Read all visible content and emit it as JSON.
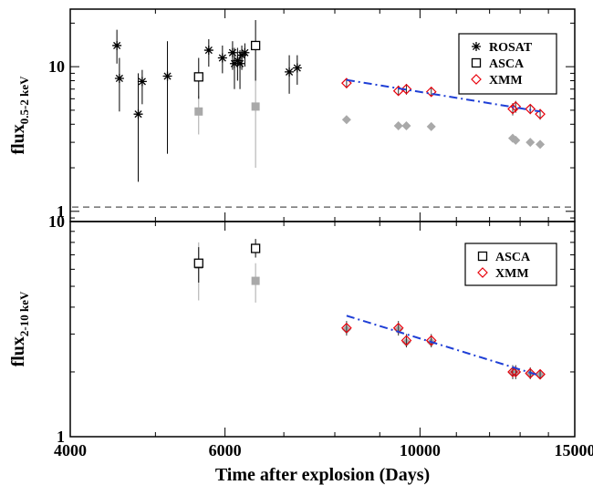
{
  "chart_data": [
    {
      "type": "scatter",
      "xscale": "log",
      "yscale": "log",
      "xlim": [
        4000,
        15000
      ],
      "ylim": [
        0.85,
        25
      ],
      "ylabel": {
        "base": "flux",
        "sub": "0.5-2 keV"
      },
      "yticks": [
        {
          "value": 1,
          "label": "1"
        },
        {
          "value": 10,
          "label": "10"
        }
      ],
      "reference_line": {
        "y": 1.07,
        "style": "dashed",
        "color": "#555555"
      },
      "legend": {
        "position": "top-right",
        "entries": [
          {
            "label": "ROSAT",
            "marker": "asterisk",
            "color": "#000000"
          },
          {
            "label": "ASCA",
            "marker": "square",
            "color": "#000000"
          },
          {
            "label": "XMM",
            "marker": "diamond",
            "color": "#e8000b"
          }
        ]
      },
      "series": [
        {
          "name": "ROSAT",
          "marker": "asterisk",
          "color": "#000000",
          "points": [
            {
              "x": 4520,
              "y": 14.0,
              "lo": 10.5,
              "hi": 18.0
            },
            {
              "x": 4550,
              "y": 8.3,
              "lo": 4.9,
              "hi": 11.5
            },
            {
              "x": 4780,
              "y": 4.7,
              "lo": 1.6,
              "hi": 9.0
            },
            {
              "x": 4830,
              "y": 7.9,
              "lo": 5.5,
              "hi": 9.5
            },
            {
              "x": 5160,
              "y": 8.6,
              "lo": 2.5,
              "hi": 15.0
            },
            {
              "x": 5750,
              "y": 13.0,
              "lo": 10.0,
              "hi": 15.5
            },
            {
              "x": 5960,
              "y": 11.5,
              "lo": 9.0,
              "hi": 14.0
            },
            {
              "x": 6120,
              "y": 12.5,
              "lo": 9.5,
              "hi": 15.0
            },
            {
              "x": 6150,
              "y": 10.5,
              "lo": 7.0,
              "hi": 13.5
            },
            {
              "x": 6200,
              "y": 11.0,
              "lo": 8.0,
              "hi": 13.5
            },
            {
              "x": 6240,
              "y": 10.5,
              "lo": 7.0,
              "hi": 13.0
            },
            {
              "x": 6270,
              "y": 12.0,
              "lo": 9.5,
              "hi": 14.0
            },
            {
              "x": 6320,
              "y": 12.5,
              "lo": 10.0,
              "hi": 14.5
            },
            {
              "x": 7100,
              "y": 9.2,
              "lo": 6.5,
              "hi": 12.0
            },
            {
              "x": 7250,
              "y": 9.8,
              "lo": 7.5,
              "hi": 12.0
            }
          ]
        },
        {
          "name": "ASCA",
          "marker": "square",
          "color": "#000000",
          "points": [
            {
              "x": 5600,
              "y": 8.5,
              "lo": 6.0,
              "hi": 11.5
            },
            {
              "x": 6500,
              "y": 14.0,
              "lo": 8.0,
              "hi": 21.0
            }
          ]
        },
        {
          "name": "ASCA (gray)",
          "marker": "square-filled",
          "color": "#a9a9a9",
          "points": [
            {
              "x": 5600,
              "y": 4.9,
              "lo": 3.4,
              "hi": 6.3
            },
            {
              "x": 6500,
              "y": 5.3,
              "lo": 2.0,
              "hi": 9.5
            }
          ]
        },
        {
          "name": "XMM",
          "marker": "diamond",
          "color": "#e8000b",
          "points": [
            {
              "x": 8250,
              "y": 7.7,
              "lo": 7.1,
              "hi": 8.3
            },
            {
              "x": 9450,
              "y": 6.8,
              "lo": 6.3,
              "hi": 7.4
            },
            {
              "x": 9650,
              "y": 7.0,
              "lo": 6.4,
              "hi": 7.6
            },
            {
              "x": 10300,
              "y": 6.7,
              "lo": 6.2,
              "hi": 7.2
            },
            {
              "x": 12750,
              "y": 5.1,
              "lo": 4.6,
              "hi": 5.6
            },
            {
              "x": 12850,
              "y": 5.3,
              "lo": 4.8,
              "hi": 5.8
            },
            {
              "x": 13350,
              "y": 5.1,
              "lo": 4.7,
              "hi": 5.5
            },
            {
              "x": 13700,
              "y": 4.7,
              "lo": 4.3,
              "hi": 5.1
            }
          ]
        },
        {
          "name": "XMM (gray)",
          "marker": "diamond-filled",
          "color": "#a9a9a9",
          "points": [
            {
              "x": 8250,
              "y": 4.3
            },
            {
              "x": 9450,
              "y": 3.9
            },
            {
              "x": 9650,
              "y": 3.9
            },
            {
              "x": 10300,
              "y": 3.85
            },
            {
              "x": 12750,
              "y": 3.2
            },
            {
              "x": 12850,
              "y": 3.1
            },
            {
              "x": 13350,
              "y": 3.0
            },
            {
              "x": 13700,
              "y": 2.9
            }
          ]
        }
      ],
      "fit_line": {
        "style": "dash-dot",
        "color": "#1f3fd6",
        "points": [
          [
            8250,
            8.1
          ],
          [
            13700,
            4.9
          ]
        ]
      }
    },
    {
      "type": "scatter",
      "xscale": "log",
      "yscale": "log",
      "xlim": [
        4000,
        15000
      ],
      "ylim": [
        1,
        10
      ],
      "xlabel": "Time after explosion (Days)",
      "ylabel": {
        "base": "flux",
        "sub": "2-10 keV"
      },
      "xticks": [
        {
          "value": 4000,
          "label": "4000"
        },
        {
          "value": 6000,
          "label": "6000"
        },
        {
          "value": 10000,
          "label": "10000"
        },
        {
          "value": 15000,
          "label": "15000"
        }
      ],
      "yticks": [
        {
          "value": 1,
          "label": "1"
        },
        {
          "value": 10,
          "label": "10"
        }
      ],
      "legend": {
        "position": "top-right",
        "entries": [
          {
            "label": "ASCA",
            "marker": "square",
            "color": "#000000"
          },
          {
            "label": "XMM",
            "marker": "diamond",
            "color": "#e8000b"
          }
        ]
      },
      "series": [
        {
          "name": "ASCA",
          "marker": "square",
          "color": "#000000",
          "points": [
            {
              "x": 5600,
              "y": 6.4,
              "lo": 5.2,
              "hi": 7.6
            },
            {
              "x": 6500,
              "y": 7.5,
              "lo": 6.8,
              "hi": 8.3
            }
          ]
        },
        {
          "name": "ASCA (gray)",
          "marker": "square-filled",
          "color": "#a9a9a9",
          "points": [
            {
              "x": 5600,
              "y": 6.3,
              "lo": 4.3,
              "hi": 8.0
            },
            {
              "x": 6500,
              "y": 5.3,
              "lo": 4.2,
              "hi": 6.4
            }
          ]
        },
        {
          "name": "XMM",
          "marker": "diamond",
          "color": "#e8000b",
          "points": [
            {
              "x": 8250,
              "y": 3.2,
              "lo": 2.95,
              "hi": 3.45
            },
            {
              "x": 9450,
              "y": 3.2,
              "lo": 2.95,
              "hi": 3.45
            },
            {
              "x": 9650,
              "y": 2.8,
              "lo": 2.6,
              "hi": 3.0
            },
            {
              "x": 10300,
              "y": 2.8,
              "lo": 2.6,
              "hi": 3.0
            },
            {
              "x": 12750,
              "y": 2.0,
              "lo": 1.85,
              "hi": 2.15
            },
            {
              "x": 12850,
              "y": 2.0,
              "lo": 1.85,
              "hi": 2.15
            },
            {
              "x": 13350,
              "y": 1.97,
              "lo": 1.85,
              "hi": 2.1
            },
            {
              "x": 13700,
              "y": 1.95,
              "lo": 1.85,
              "hi": 2.05
            }
          ]
        },
        {
          "name": "XMM (gray)",
          "marker": "diamond-filled",
          "color": "#a9a9a9",
          "points": [
            {
              "x": 8250,
              "y": 3.15
            },
            {
              "x": 9450,
              "y": 3.15
            },
            {
              "x": 9650,
              "y": 2.75
            },
            {
              "x": 10300,
              "y": 2.75
            },
            {
              "x": 12750,
              "y": 1.98
            },
            {
              "x": 12850,
              "y": 1.98
            },
            {
              "x": 13350,
              "y": 1.95
            },
            {
              "x": 13700,
              "y": 1.93
            }
          ]
        }
      ],
      "fit_line": {
        "style": "dash-dot",
        "color": "#1f3fd6",
        "points": [
          [
            8250,
            3.65
          ],
          [
            13700,
            1.92
          ]
        ]
      }
    }
  ]
}
